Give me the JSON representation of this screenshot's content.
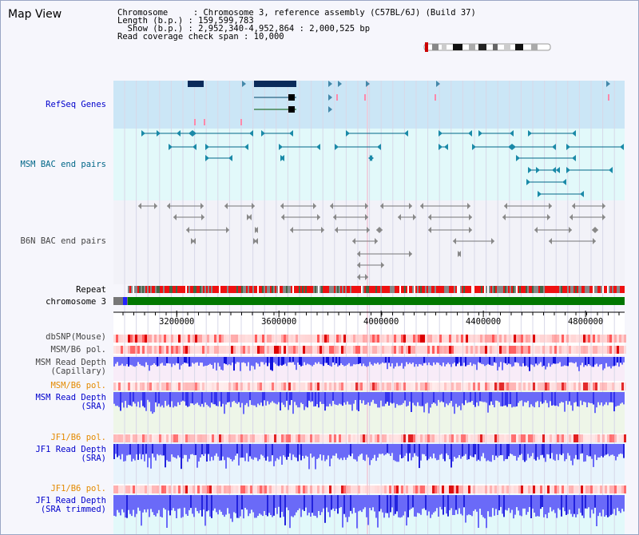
{
  "title": "Map View",
  "header": {
    "line1": "Chromosome     : Chromosome 3, reference assembly (C57BL/6J) (Build 37)",
    "line2": "Length (b.p.) : 159,599,783",
    "line3": "  Show (b.p.) : 2,952,340-4,952,864 : 2,000,525 bp",
    "line4": "Read coverage check span : 10,000"
  },
  "tracks": {
    "refseq": "RefSeq Genes",
    "msm_bac": "MSM BAC end pairs",
    "b6n_bac": "B6N BAC end pairs",
    "repeat": "Repeat",
    "chromosome": "chromosome 3",
    "dbsnp": "dbSNP(Mouse)",
    "msm_b6_pol": "MSM/B6 pol.",
    "msm_depth_cap": "MSM Read Depth\n(Capillary)",
    "msm_b6_pol2": "MSM/B6 pol.",
    "msm_depth_sra": "MSM Read Depth\n(SRA)",
    "jf1_b6_pol": "JF1/B6 pol.",
    "jf1_depth_sra": "JF1 Read Depth\n(SRA)",
    "jf1_b6_pol2": "JF1/B6 pol.",
    "jf1_depth_trim": "JF1 Read Depth\n(SRA trimmed)"
  },
  "axis": {
    "ticks": [
      "3200000",
      "3600000",
      "4000000",
      "4400000",
      "4800000"
    ],
    "tick_values": [
      3200000,
      3600000,
      4000000,
      4400000,
      4800000
    ],
    "range": [
      2952340,
      4952864
    ]
  },
  "colors": {
    "refseq_bg": "#cbe6f6",
    "bac_bg": "#e2f9fa",
    "depth_blue": "#3333ff",
    "pol_red": "#ff4444",
    "chrom_green": "#007700"
  }
}
